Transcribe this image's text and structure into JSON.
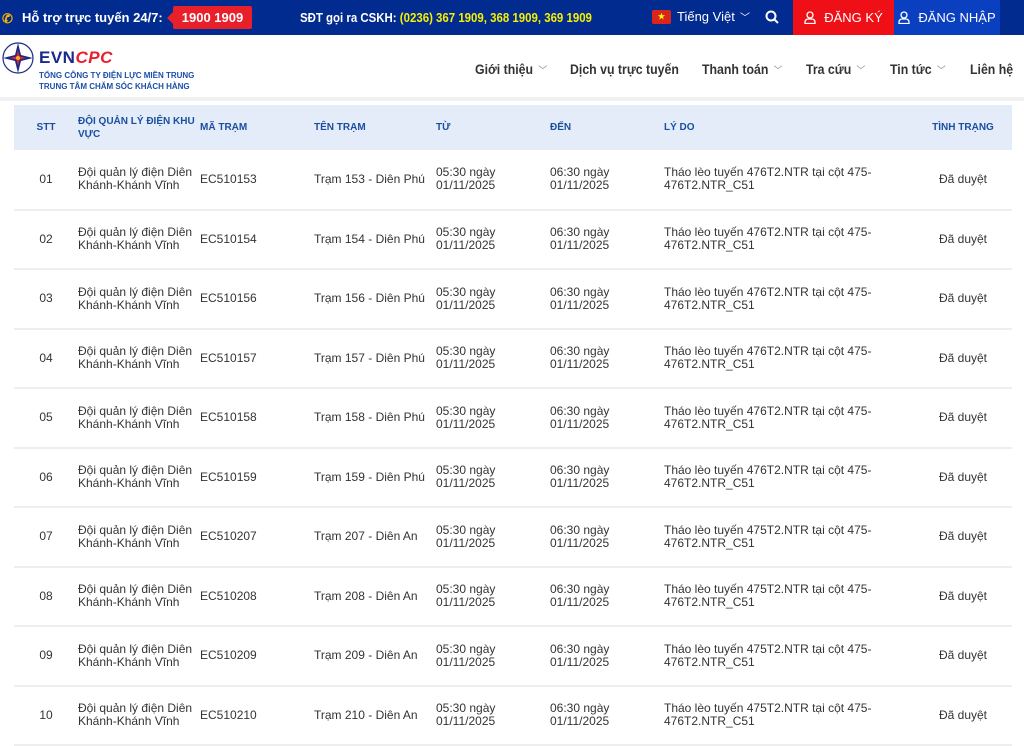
{
  "topbar": {
    "support_label": "Hỗ trợ trực tuyến 24/7:",
    "hotline": "1900 1909",
    "cskh_label": "SĐT gọi ra CSKH:",
    "cskh_numbers": "(0236) 367 1909, 368 1909, 369 1909",
    "language": "Tiếng Việt",
    "register": "ĐĂNG KÝ",
    "login": "ĐĂNG NHẬP"
  },
  "header": {
    "brand_a": "EVN",
    "brand_b": "CPC",
    "sub1": "TỔNG CÔNG TY ĐIỆN LỰC MIỀN TRUNG",
    "sub2": "TRUNG TÂM CHĂM SÓC KHÁCH HÀNG",
    "nav": [
      "Giới thiệu",
      "Dịch vụ trực tuyến",
      "Thanh toán",
      "Tra cứu",
      "Tin tức",
      "Liên hệ"
    ]
  },
  "colors": {
    "topbar": "#022b8f",
    "register": "#ee0f17",
    "login": "#0a3fc0",
    "table_header": "#e5ecf9",
    "header_text": "#1a4fa0"
  },
  "table": {
    "headers": [
      "STT",
      "ĐỘI QUẢN LÝ ĐIỆN KHU VỰC",
      "MÃ TRẠM",
      "TÊN TRẠM",
      "TỪ",
      "ĐẾN",
      "LÝ DO",
      "TÌNH TRẠNG"
    ],
    "rows": [
      [
        "01",
        "Đội quản lý điện Diên Khánh-Khánh Vĩnh",
        "EC510153",
        "Trạm 153 - Diên Phú",
        "05:30 ngày 01/11/2025",
        "06:30 ngày 01/11/2025",
        "Tháo lèo tuyến 476T2.NTR tại cột 475-476T2.NTR_C51",
        "Đã duyệt"
      ],
      [
        "02",
        "Đội quản lý điện Diên Khánh-Khánh Vĩnh",
        "EC510154",
        "Trạm 154 - Diên Phú",
        "05:30 ngày 01/11/2025",
        "06:30 ngày 01/11/2025",
        "Tháo lèo tuyến 476T2.NTR tại cột 475-476T2.NTR_C51",
        "Đã duyệt"
      ],
      [
        "03",
        "Đội quản lý điện Diên Khánh-Khánh Vĩnh",
        "EC510156",
        "Trạm 156 - Diên Phú",
        "05:30 ngày 01/11/2025",
        "06:30 ngày 01/11/2025",
        "Tháo lèo tuyến 476T2.NTR tại cột 475-476T2.NTR_C51",
        "Đã duyệt"
      ],
      [
        "04",
        "Đội quản lý điện Diên Khánh-Khánh Vĩnh",
        "EC510157",
        "Trạm 157 - Diên Phú",
        "05:30 ngày 01/11/2025",
        "06:30 ngày 01/11/2025",
        "Tháo lèo tuyến 476T2.NTR tại cột 475-476T2.NTR_C51",
        "Đã duyệt"
      ],
      [
        "05",
        "Đội quản lý điện Diên Khánh-Khánh Vĩnh",
        "EC510158",
        "Trạm 158 - Diên Phú",
        "05:30 ngày 01/11/2025",
        "06:30 ngày 01/11/2025",
        "Tháo lèo tuyến 476T2.NTR tại cột 475-476T2.NTR_C51",
        "Đã duyệt"
      ],
      [
        "06",
        "Đội quản lý điện Diên Khánh-Khánh Vĩnh",
        "EC510159",
        "Trạm 159 - Diên Phú",
        "05:30 ngày 01/11/2025",
        "06:30 ngày 01/11/2025",
        "Tháo lèo tuyến 476T2.NTR tại cột 475-476T2.NTR_C51",
        "Đã duyệt"
      ],
      [
        "07",
        "Đội quản lý điện Diên Khánh-Khánh Vĩnh",
        "EC510207",
        "Trạm 207 - Diên An",
        "05:30 ngày 01/11/2025",
        "06:30 ngày 01/11/2025",
        "Tháo lèo tuyến 475T2.NTR tại cột 475-476T2.NTR_C51",
        "Đã duyệt"
      ],
      [
        "08",
        "Đội quản lý điện Diên Khánh-Khánh Vĩnh",
        "EC510208",
        "Trạm 208 - Diên An",
        "05:30 ngày 01/11/2025",
        "06:30 ngày 01/11/2025",
        "Tháo lèo tuyến 475T2.NTR tại cột 475-476T2.NTR_C51",
        "Đã duyệt"
      ],
      [
        "09",
        "Đội quản lý điện Diên Khánh-Khánh Vĩnh",
        "EC510209",
        "Trạm 209 - Diên An",
        "05:30 ngày 01/11/2025",
        "06:30 ngày 01/11/2025",
        "Tháo lèo tuyến 475T2.NTR tại cột 475-476T2.NTR_C51",
        "Đã duyệt"
      ],
      [
        "10",
        "Đội quản lý điện Diên Khánh-Khánh Vĩnh",
        "EC510210",
        "Trạm 210 - Diên An",
        "05:30 ngày 01/11/2025",
        "06:30 ngày 01/11/2025",
        "Tháo lèo tuyến 475T2.NTR tại cột 475-476T2.NTR_C51",
        "Đã duyệt"
      ]
    ]
  }
}
